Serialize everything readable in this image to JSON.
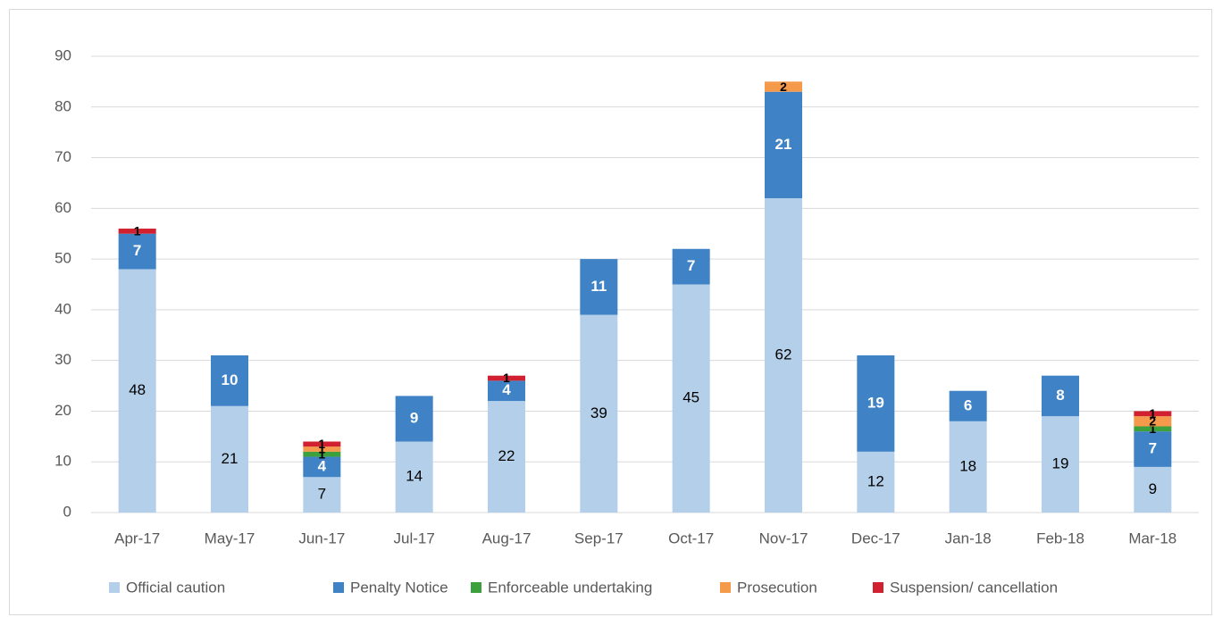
{
  "chart_data": {
    "type": "bar",
    "stacked": true,
    "categories": [
      "Apr-17",
      "May-17",
      "Jun-17",
      "Jul-17",
      "Aug-17",
      "Sep-17",
      "Oct-17",
      "Nov-17",
      "Dec-17",
      "Jan-18",
      "Feb-18",
      "Mar-18"
    ],
    "series": [
      {
        "name": "Official caution",
        "color": "#b4cfe9",
        "values": [
          48,
          21,
          7,
          14,
          22,
          39,
          45,
          62,
          12,
          18,
          19,
          9
        ]
      },
      {
        "name": "Penalty Notice",
        "color": "#3f83c6",
        "values": [
          7,
          10,
          4,
          9,
          4,
          11,
          7,
          21,
          19,
          6,
          8,
          7
        ]
      },
      {
        "name": "Enforceable undertaking",
        "color": "#3ca03c",
        "values": [
          0,
          0,
          1,
          0,
          0,
          0,
          0,
          0,
          0,
          0,
          0,
          1
        ]
      },
      {
        "name": "Prosecution",
        "color": "#f5994a",
        "values": [
          0,
          0,
          1,
          0,
          0,
          0,
          0,
          2,
          0,
          0,
          0,
          2
        ]
      },
      {
        "name": "Suspension/ cancellation",
        "color": "#d12030",
        "values": [
          1,
          0,
          1,
          0,
          1,
          0,
          0,
          0,
          0,
          0,
          0,
          1
        ]
      }
    ],
    "ylim": [
      0,
      90
    ],
    "yticks": [
      0,
      10,
      20,
      30,
      40,
      50,
      60,
      70,
      80,
      90
    ],
    "grid": true,
    "legend": "bottom"
  }
}
